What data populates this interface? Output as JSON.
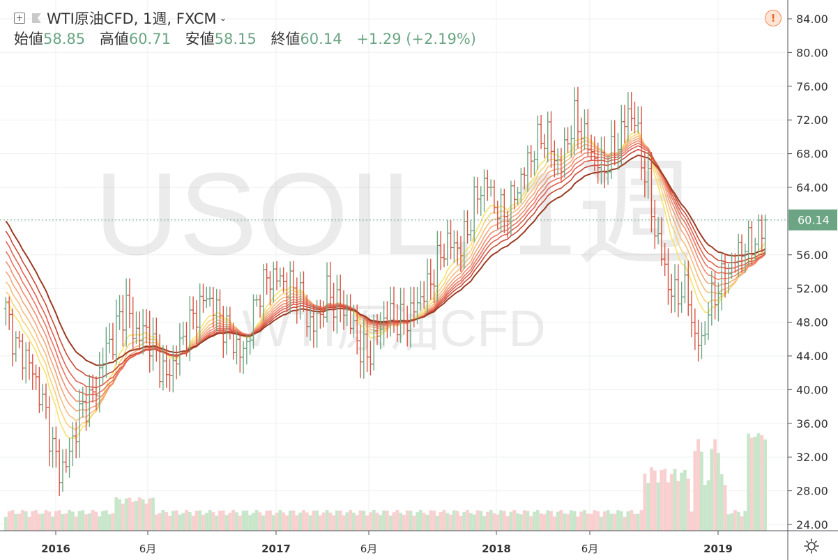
{
  "header": {
    "title": "WTI原油CFD, 1週, FXCM",
    "ohlc": [
      {
        "label": "始値",
        "value": "58.85"
      },
      {
        "label": "高値",
        "value": "60.71"
      },
      {
        "label": "安値",
        "value": "58.15"
      },
      {
        "label": "終値",
        "value": "60.14"
      }
    ],
    "change": "+1.29 (+2.19%)",
    "alert_symbol": "!"
  },
  "watermark": {
    "symbol": "USOIL, 1週",
    "name": "WTI原油CFD"
  },
  "colors": {
    "up": "#6ba583",
    "down": "#d75442",
    "vol_up": "#c8e6c9",
    "vol_down": "#f8d0d0",
    "price_tag": "#6ba583",
    "ribbon": [
      "#f7e26b",
      "#f7d17a",
      "#f5bd80",
      "#f2a57b",
      "#ee8c6e",
      "#e87461",
      "#df5f4f",
      "#c94a36",
      "#9b3a22"
    ]
  },
  "icons": {
    "legend_add": "plus-square-icon",
    "visibility": "flag-icon",
    "dropdown": "chevron-down-icon",
    "alert": "alert-icon",
    "settings": "gear-icon"
  },
  "chart_data": {
    "type": "candlestick",
    "title": "WTI原油CFD, 1週, FXCM",
    "x_ticks": [
      "2016",
      "6月",
      "2017",
      "6月",
      "2018",
      "6月",
      "2019"
    ],
    "y_ticks": [
      "24.00",
      "28.00",
      "32.00",
      "36.00",
      "40.00",
      "44.00",
      "48.00",
      "52.00",
      "56.00",
      "60.00",
      "64.00",
      "68.00",
      "72.00",
      "76.00",
      "80.00",
      "84.00"
    ],
    "ylim": [
      22,
      86
    ],
    "last_price": "60.14",
    "series": [
      {
        "type": "ohlc_weekly",
        "points": [
          [
            0,
            49.5
          ],
          [
            3,
            45
          ],
          [
            6,
            44
          ],
          [
            9,
            41
          ],
          [
            12,
            37
          ],
          [
            14,
            33
          ],
          [
            16,
            30.5
          ],
          [
            18,
            31
          ],
          [
            20,
            34
          ],
          [
            22,
            37
          ],
          [
            24,
            38.5
          ],
          [
            26,
            39
          ],
          [
            28,
            42
          ],
          [
            30,
            45
          ],
          [
            32,
            46
          ],
          [
            34,
            48.5
          ],
          [
            36,
            50
          ],
          [
            38,
            47
          ],
          [
            40,
            46.5
          ],
          [
            42,
            47
          ],
          [
            44,
            45
          ],
          [
            46,
            43
          ],
          [
            48,
            41.5
          ],
          [
            50,
            43
          ],
          [
            52,
            45
          ],
          [
            54,
            47
          ],
          [
            56,
            48.5
          ],
          [
            58,
            50
          ],
          [
            60,
            51
          ],
          [
            62,
            50
          ],
          [
            64,
            48.5
          ],
          [
            66,
            47
          ],
          [
            68,
            46
          ],
          [
            70,
            44
          ],
          [
            72,
            45.5
          ],
          [
            74,
            49
          ],
          [
            76,
            52
          ],
          [
            78,
            53
          ],
          [
            80,
            53.5
          ],
          [
            82,
            53
          ],
          [
            84,
            52.5
          ],
          [
            86,
            52
          ],
          [
            88,
            51
          ],
          [
            90,
            48.5
          ],
          [
            92,
            47.5
          ],
          [
            94,
            49
          ],
          [
            96,
            51.5
          ],
          [
            98,
            50.5
          ],
          [
            100,
            50
          ],
          [
            102,
            49
          ],
          [
            104,
            47
          ],
          [
            106,
            45
          ],
          [
            108,
            44
          ],
          [
            110,
            45.5
          ],
          [
            112,
            47.5
          ],
          [
            114,
            49
          ],
          [
            116,
            48.5
          ],
          [
            118,
            48
          ],
          [
            120,
            48.5
          ],
          [
            122,
            49.5
          ],
          [
            124,
            51
          ],
          [
            126,
            52
          ],
          [
            128,
            54
          ],
          [
            130,
            56
          ],
          [
            132,
            57.5
          ],
          [
            134,
            57
          ],
          [
            136,
            57
          ],
          [
            138,
            59
          ],
          [
            140,
            62
          ],
          [
            142,
            64
          ],
          [
            144,
            64.5
          ],
          [
            146,
            62
          ],
          [
            148,
            61
          ],
          [
            150,
            61.5
          ],
          [
            152,
            63
          ],
          [
            154,
            65
          ],
          [
            156,
            67
          ],
          [
            158,
            68.5
          ],
          [
            160,
            70
          ],
          [
            162,
            70
          ],
          [
            164,
            67.5
          ],
          [
            166,
            66.5
          ],
          [
            168,
            70
          ],
          [
            170,
            72
          ],
          [
            172,
            71
          ],
          [
            174,
            69
          ],
          [
            176,
            67.5
          ],
          [
            178,
            66.5
          ],
          [
            180,
            67
          ],
          [
            182,
            68.5
          ],
          [
            184,
            70.5
          ],
          [
            186,
            73
          ],
          [
            188,
            72
          ],
          [
            190,
            67.5
          ],
          [
            192,
            64
          ],
          [
            194,
            59
          ],
          [
            196,
            56
          ],
          [
            198,
            52.5
          ],
          [
            200,
            51
          ],
          [
            202,
            52
          ],
          [
            204,
            51
          ],
          [
            206,
            46
          ],
          [
            208,
            45.5
          ],
          [
            210,
            49.5
          ],
          [
            212,
            51.5
          ],
          [
            214,
            53
          ],
          [
            216,
            54
          ],
          [
            218,
            55.5
          ],
          [
            220,
            57
          ],
          [
            222,
            57
          ],
          [
            224,
            58
          ],
          [
            226,
            58.8
          ],
          [
            227,
            60.14
          ]
        ]
      },
      {
        "type": "volume_weekly",
        "max_label": "rel"
      }
    ],
    "indicator": {
      "type": "ribbon_moving_averages",
      "count": 9
    }
  }
}
